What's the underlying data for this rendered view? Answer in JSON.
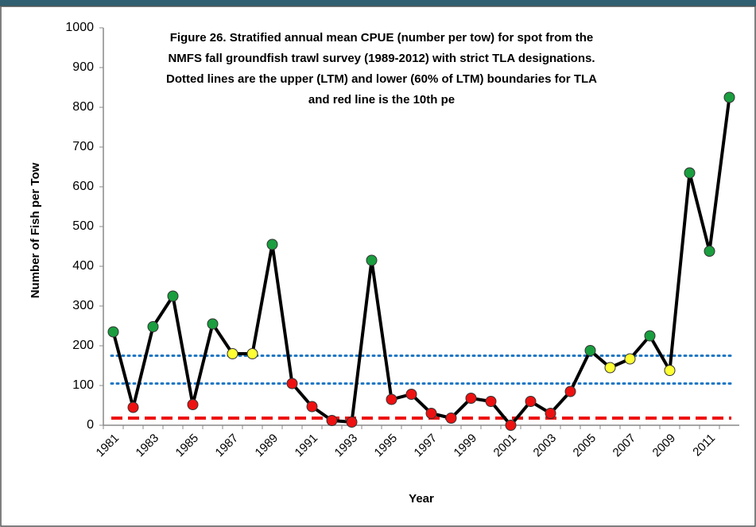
{
  "chart_data": {
    "type": "line",
    "title_lines": [
      "Figure 26.  Stratified annual mean CPUE (number per tow) for spot from the",
      "NMFS fall groundfish trawl survey (1989-2012) with strict TLA designations.",
      "Dotted lines are the upper (LTM) and lower (60% of LTM) boundaries for TLA",
      "and  red line is the 10th pe"
    ],
    "x_label": "Year",
    "y_label": "Number of Fish per Tow",
    "categories": [
      "1981",
      null,
      "1983",
      null,
      "1985",
      null,
      "1987",
      null,
      "1989",
      null,
      "1991",
      null,
      "1993",
      null,
      "1995",
      null,
      "1997",
      null,
      "1999",
      null,
      "2001",
      null,
      "2003",
      null,
      "2005",
      null,
      "2007",
      null,
      "2009",
      null,
      "2011",
      null
    ],
    "series": [
      {
        "color": "#000000",
        "values": [
          235,
          45,
          248,
          325,
          52,
          255,
          180,
          180,
          455,
          105,
          47,
          12,
          8,
          415,
          65,
          78,
          30,
          18,
          68,
          60,
          0,
          60,
          30,
          85,
          188,
          145,
          167,
          225,
          138,
          635,
          438,
          825
        ],
        "point_colors": [
          "#1a9e3f",
          "#ee1111",
          "#1a9e3f",
          "#1a9e3f",
          "#ee1111",
          "#1a9e3f",
          "#ffff33",
          "#ffff33",
          "#1a9e3f",
          "#ee1111",
          "#ee1111",
          "#ee1111",
          "#ee1111",
          "#1a9e3f",
          "#ee1111",
          "#ee1111",
          "#ee1111",
          "#ee1111",
          "#ee1111",
          "#ee1111",
          "#ee1111",
          "#ee1111",
          "#ee1111",
          "#ee1111",
          "#1a9e3f",
          "#ffff33",
          "#ffff33",
          "#1a9e3f",
          "#ffff33",
          "#1a9e3f",
          "#1a9e3f",
          "#1a9e3f"
        ]
      }
    ],
    "reference_lines": [
      {
        "value": 175,
        "color": "#1f77c4",
        "style": "dotted"
      },
      {
        "value": 105,
        "color": "#1f77c4",
        "style": "dotted"
      },
      {
        "value": 18,
        "color": "#ee1111",
        "style": "dashed"
      }
    ],
    "ylim": [
      0,
      1000
    ],
    "yticks": [
      0,
      100,
      200,
      300,
      400,
      500,
      600,
      700,
      800,
      900,
      1000
    ],
    "grid": false
  }
}
